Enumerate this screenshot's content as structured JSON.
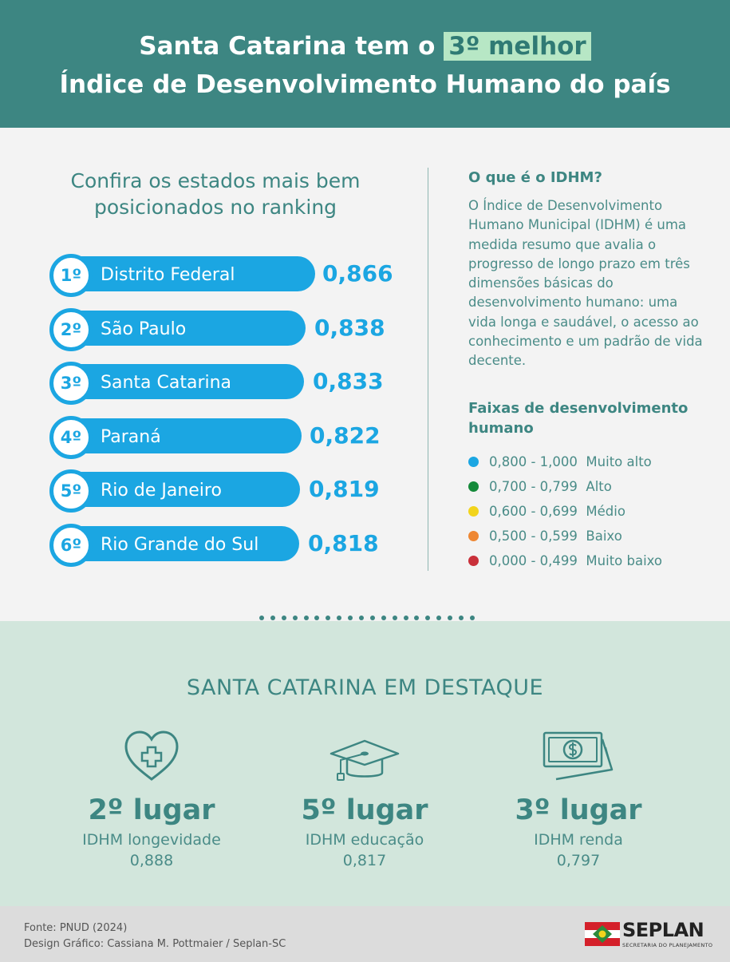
{
  "header": {
    "line1_prefix": "Santa Catarina tem o ",
    "line1_highlight": "3º melhor",
    "line2": "Índice de Desenvolvimento Humano do país"
  },
  "ranking": {
    "title": "Confira os estados mais bem posicionados no ranking",
    "items": [
      {
        "pos": "1º",
        "state": "Distrito Federal",
        "value": "0,866"
      },
      {
        "pos": "2º",
        "state": "São Paulo",
        "value": "0,838"
      },
      {
        "pos": "3º",
        "state": "Santa Catarina",
        "value": "0,833"
      },
      {
        "pos": "4º",
        "state": "Paraná",
        "value": "0,822"
      },
      {
        "pos": "5º",
        "state": "Rio de Janeiro",
        "value": "0,819"
      },
      {
        "pos": "6º",
        "state": "Rio Grande do Sul",
        "value": "0,818"
      }
    ]
  },
  "info": {
    "title": "O que é o IDHM?",
    "description": "O Índice de Desenvolvimento Humano Municipal (IDHM) é uma medida resumo que avalia o progresso de longo prazo em três dimensões básicas do desenvolvimento humano: uma vida longa e saudável, o acesso ao conhecimento e um padrão de vida decente.",
    "faixas_title": "Faixas de desenvolvimento humano",
    "legend": [
      {
        "range": "0,800 - 1,000",
        "label": "Muito alto",
        "color": "#1ba6e2"
      },
      {
        "range": "0,700 - 0,799",
        "label": "Alto",
        "color": "#158a3a"
      },
      {
        "range": "0,600 - 0,699",
        "label": "Médio",
        "color": "#f2d41c"
      },
      {
        "range": "0,500 - 0,599",
        "label": "Baixo",
        "color": "#ee8733"
      },
      {
        "range": "0,000 - 0,499",
        "label": "Muito baixo",
        "color": "#c9303a"
      }
    ]
  },
  "highlight": {
    "title": "SANTA CATARINA EM DESTAQUE",
    "stats": [
      {
        "icon": "heart-plus-icon",
        "place": "2º lugar",
        "label": "IDHM longevidade",
        "value": "0,888"
      },
      {
        "icon": "graduation-cap-icon",
        "place": "5º lugar",
        "label": "IDHM educação",
        "value": "0,817"
      },
      {
        "icon": "money-bills-icon",
        "place": "3º lugar",
        "label": "IDHM renda",
        "value": "0,797"
      }
    ]
  },
  "footer": {
    "source": "Fonte: PNUD (2024)",
    "design": "Design Gráfico: Cassiana M. Pottmaier / Seplan-SC",
    "logo_name": "SEPLAN",
    "logo_sub": "SECRETARIA DO PLANEJAMENTO"
  }
}
